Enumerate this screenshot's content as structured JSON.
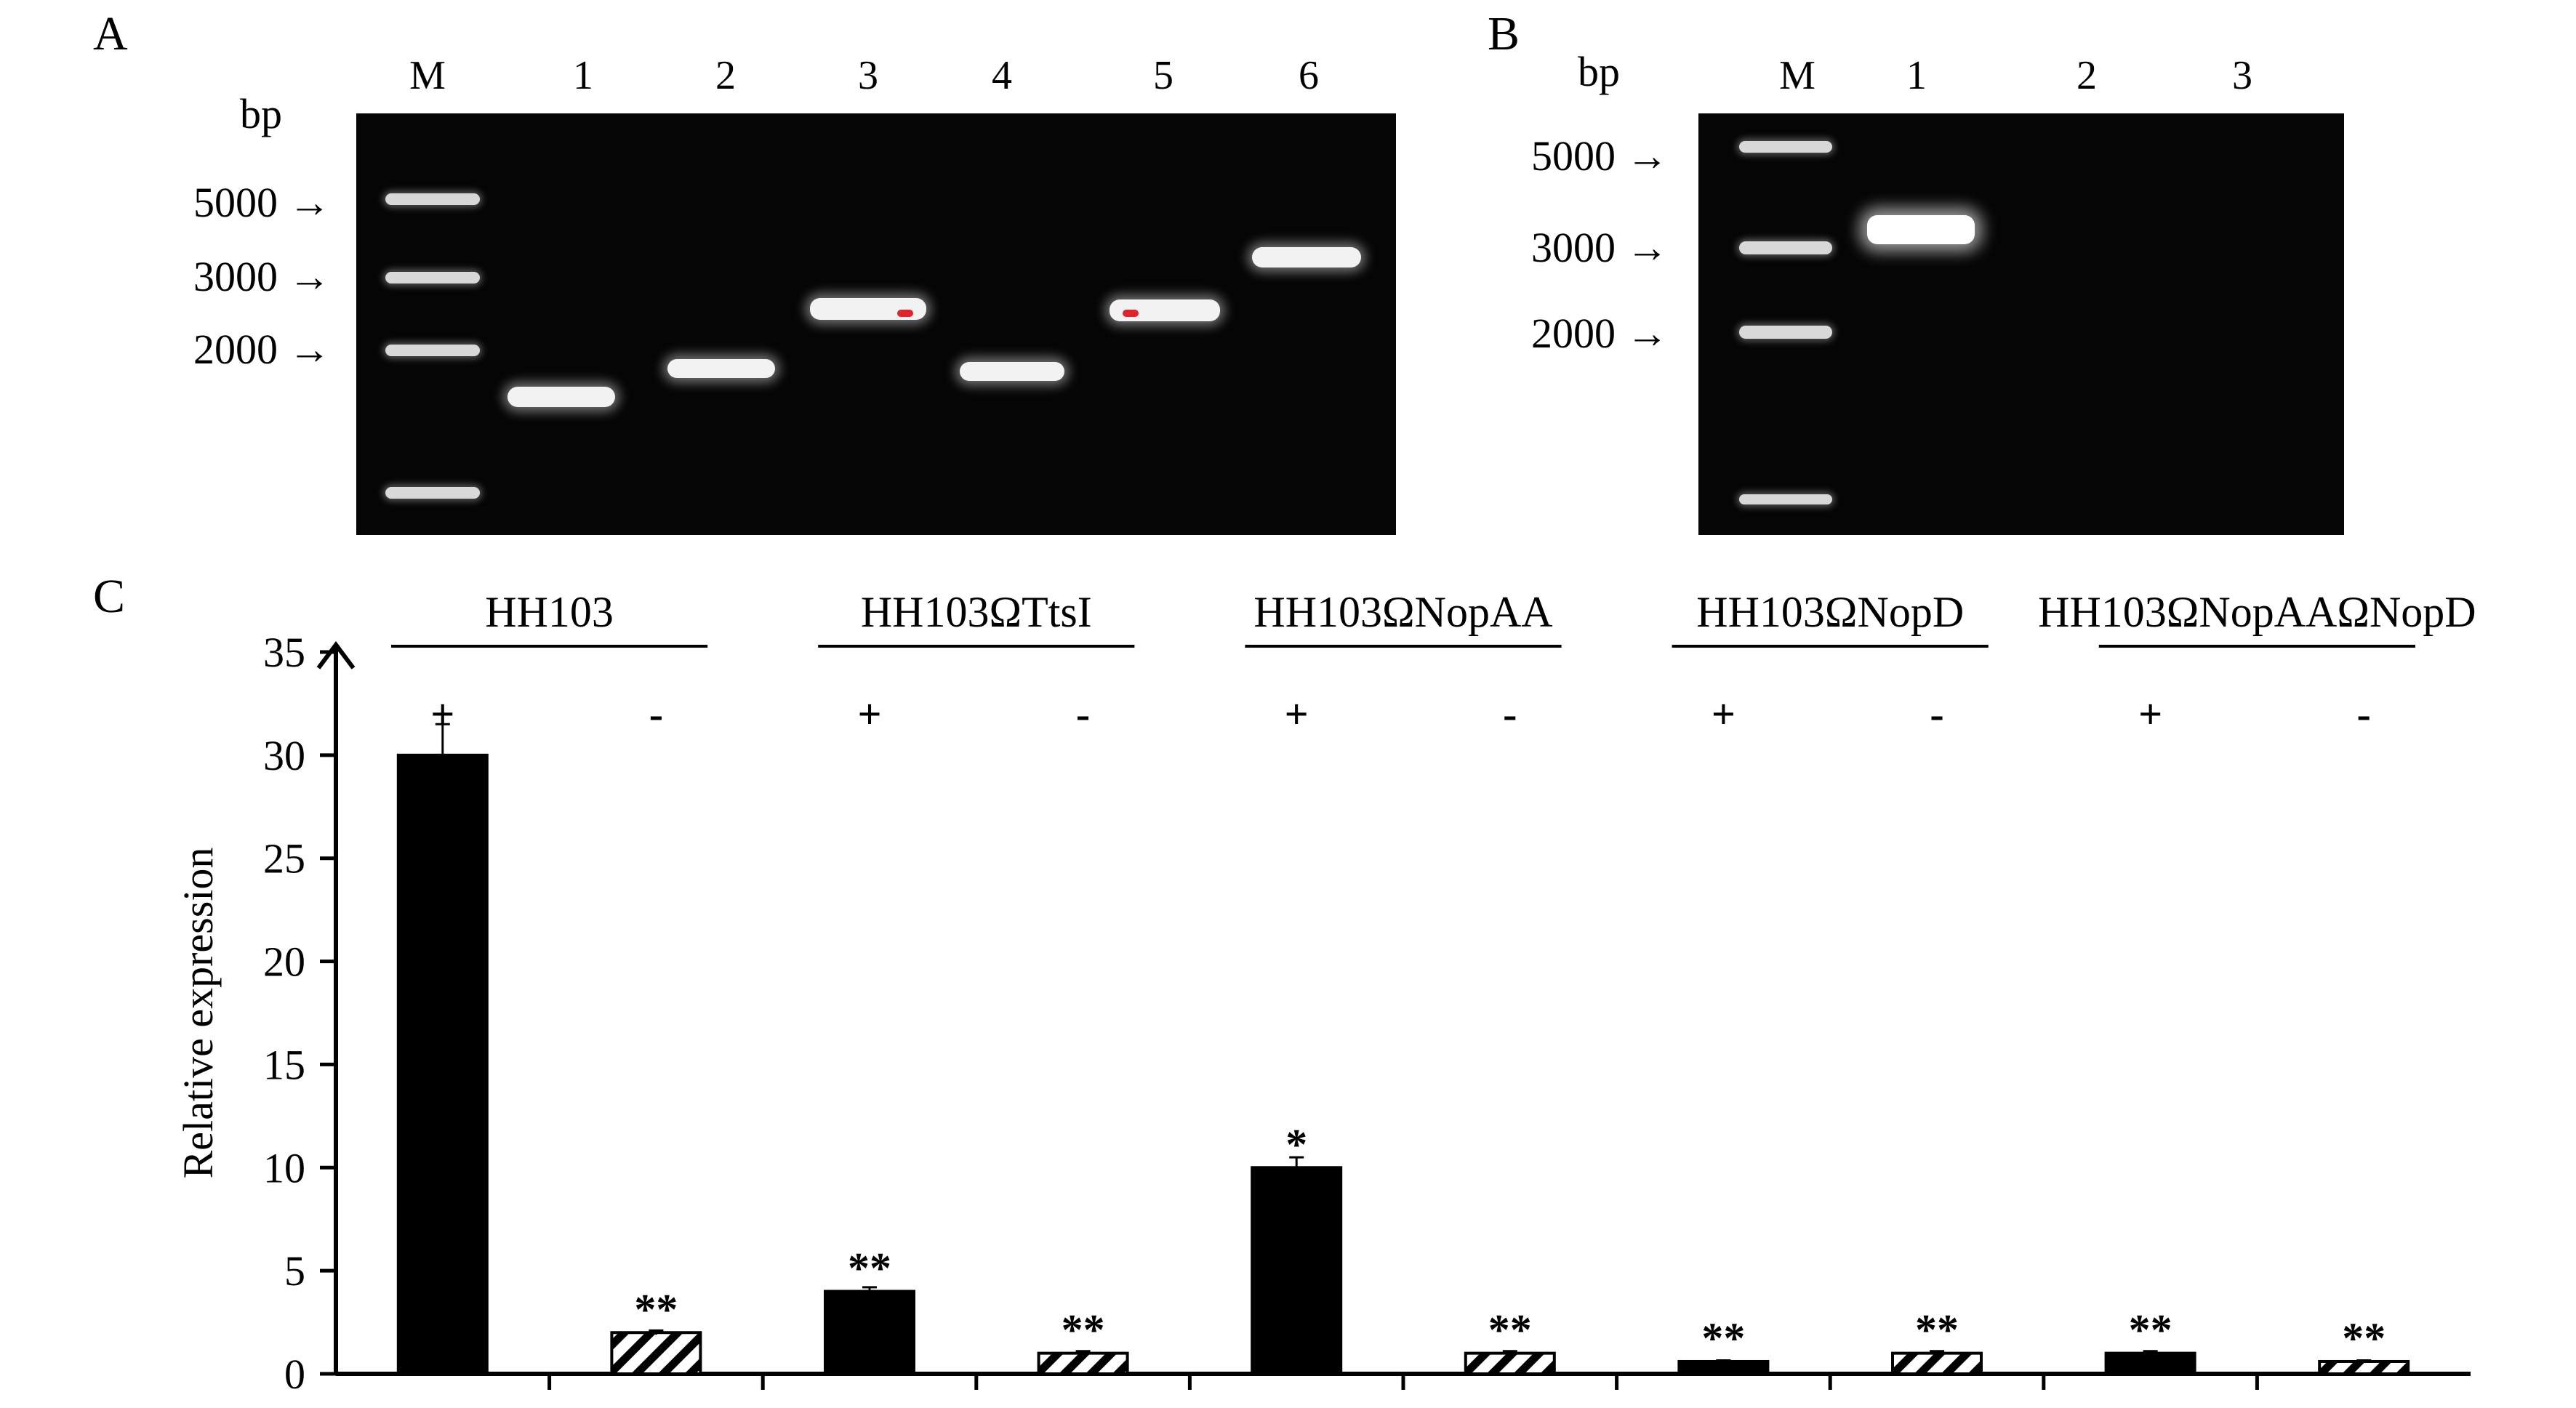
{
  "panels": {
    "a": {
      "letter": "A",
      "bp_label": "bp",
      "lanes": [
        "M",
        "1",
        "2",
        "3",
        "4",
        "5",
        "6"
      ],
      "markers": [
        "5000",
        "3000",
        "2000"
      ]
    },
    "b": {
      "letter": "B",
      "bp_label": "bp",
      "lanes": [
        "M",
        "1",
        "2",
        "3"
      ],
      "markers": [
        "5000",
        "3000",
        "2000"
      ]
    },
    "c": {
      "letter": "C"
    }
  },
  "chart_data": {
    "type": "bar",
    "ylabel": "Relative expression",
    "ylim": [
      0,
      35
    ],
    "yticks": [
      "0",
      "5",
      "10",
      "15",
      "20",
      "25",
      "30",
      "35"
    ],
    "groups": [
      {
        "name": "HH103",
        "bars": [
          {
            "sign": "+",
            "value": 30,
            "error": 1.5,
            "significance": "",
            "pattern": "solid"
          },
          {
            "sign": "-",
            "value": 2,
            "error": 0.1,
            "significance": "**",
            "pattern": "hatched"
          }
        ]
      },
      {
        "name": "HH103ΩTtsI",
        "bars": [
          {
            "sign": "+",
            "value": 4,
            "error": 0.2,
            "significance": "**",
            "pattern": "solid"
          },
          {
            "sign": "-",
            "value": 1,
            "error": 0.1,
            "significance": "**",
            "pattern": "hatched"
          }
        ]
      },
      {
        "name": "HH103ΩNopAA",
        "bars": [
          {
            "sign": "+",
            "value": 10,
            "error": 0.5,
            "significance": "*",
            "pattern": "solid"
          },
          {
            "sign": "-",
            "value": 1,
            "error": 0.1,
            "significance": "**",
            "pattern": "hatched"
          }
        ]
      },
      {
        "name": "HH103ΩNopD",
        "bars": [
          {
            "sign": "+",
            "value": 0.6,
            "error": 0.05,
            "significance": "**",
            "pattern": "solid"
          },
          {
            "sign": "-",
            "value": 1,
            "error": 0.1,
            "significance": "**",
            "pattern": "hatched"
          }
        ]
      },
      {
        "name": "HH103ΩNopAAΩNopD",
        "bars": [
          {
            "sign": "+",
            "value": 1,
            "error": 0.1,
            "significance": "**",
            "pattern": "solid"
          },
          {
            "sign": "-",
            "value": 0.6,
            "error": 0.05,
            "significance": "**",
            "pattern": "hatched"
          }
        ]
      }
    ]
  }
}
